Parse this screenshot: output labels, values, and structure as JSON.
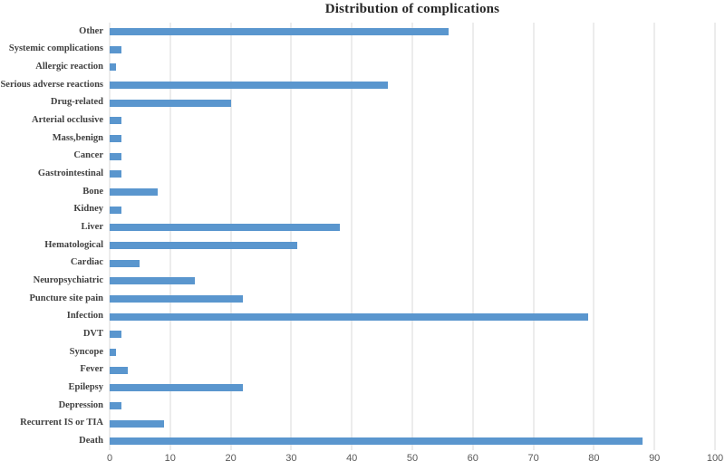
{
  "chart_data": {
    "type": "bar",
    "orientation": "horizontal",
    "title": "Distribution of complications",
    "categories": [
      "Other",
      "Systemic complications",
      "Allergic reaction",
      "Serious adverse reactions",
      "Drug-related",
      "Arterial occlusive",
      "Mass,benign",
      "Cancer",
      "Gastrointestinal",
      "Bone",
      "Kidney",
      "Liver",
      "Hematological",
      "Cardiac",
      "Neuropsychiatric",
      "Puncture site pain",
      "Infection",
      "DVT",
      "Syncope",
      "Fever",
      "Epilepsy",
      "Depression",
      "Recurrent IS or TIA",
      "Death"
    ],
    "values": [
      56,
      2,
      1,
      46,
      20,
      2,
      2,
      2,
      2,
      8,
      2,
      38,
      31,
      5,
      14,
      22,
      79,
      2,
      1,
      3,
      22,
      2,
      9,
      88
    ],
    "xlabel": "",
    "ylabel": "",
    "xlim": [
      0,
      100
    ],
    "x_ticks": [
      0,
      10,
      20,
      30,
      40,
      50,
      60,
      70,
      80,
      90,
      100
    ],
    "grid": "vertical-only",
    "legend": "none",
    "colors": {
      "bar": "#5A96CE",
      "gridline": "#D9D9D9",
      "title": "#262626",
      "category_label": "#404040",
      "tick_label": "#595959"
    }
  }
}
